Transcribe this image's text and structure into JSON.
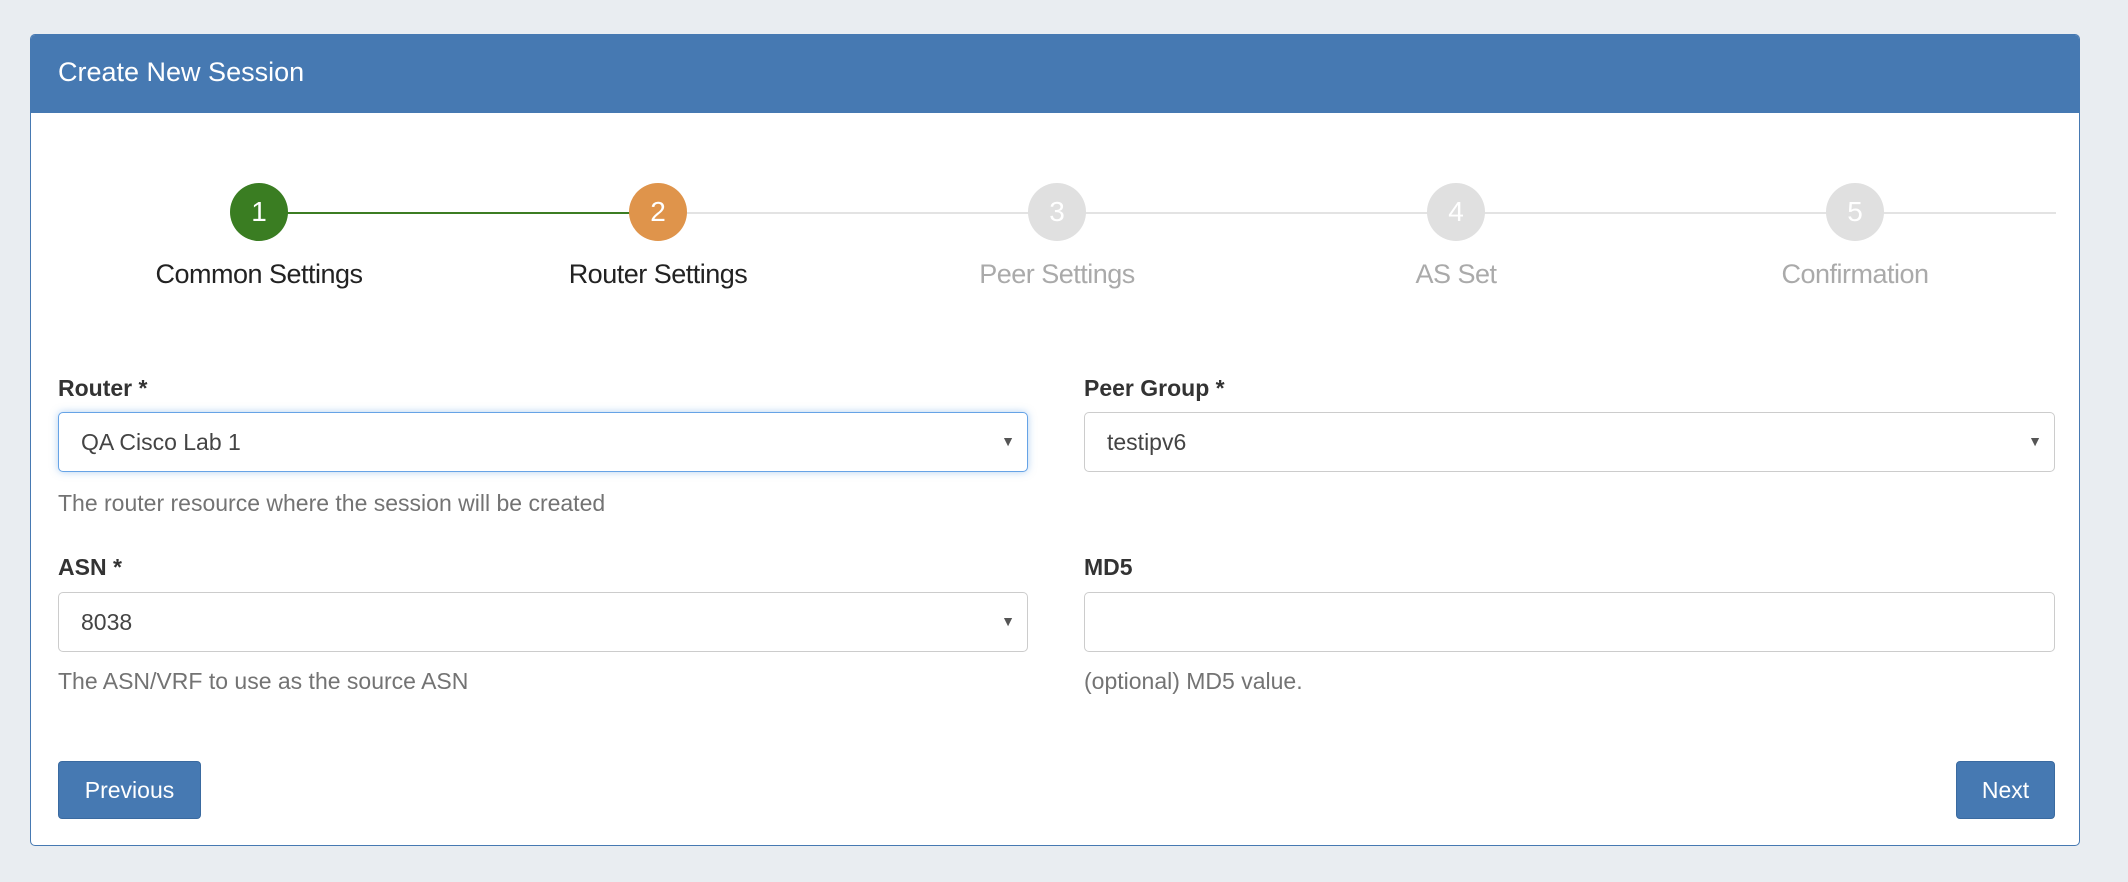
{
  "panel": {
    "title": "Create New Session"
  },
  "steps": [
    {
      "number": "1",
      "label": "Common Settings",
      "state": "done"
    },
    {
      "number": "2",
      "label": "Router Settings",
      "state": "active"
    },
    {
      "number": "3",
      "label": "Peer Settings",
      "state": "pending"
    },
    {
      "number": "4",
      "label": "AS Set",
      "state": "pending"
    },
    {
      "number": "5",
      "label": "Confirmation",
      "state": "pending"
    }
  ],
  "form": {
    "router": {
      "label": "Router *",
      "value": "QA Cisco Lab 1",
      "help": "The router resource where the session will be created"
    },
    "peer_group": {
      "label": "Peer Group *",
      "value": "testipv6"
    },
    "asn": {
      "label": "ASN *",
      "value": "8038",
      "help": "The ASN/VRF to use as the source ASN"
    },
    "md5": {
      "label": "MD5",
      "value": "",
      "help": "(optional) MD5 value."
    }
  },
  "buttons": {
    "previous": "Previous",
    "next": "Next"
  },
  "colors": {
    "primary": "#4679b2",
    "done": "#3a7d22",
    "active": "#df944b",
    "pending": "#e0e0e0"
  }
}
